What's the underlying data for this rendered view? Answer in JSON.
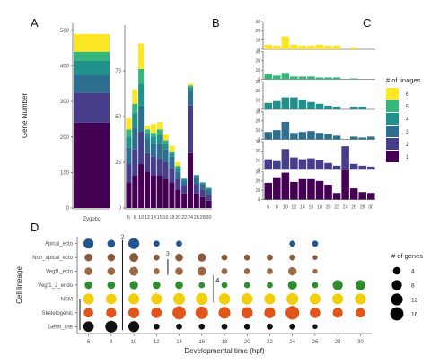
{
  "panels": {
    "a": "A",
    "b": "B",
    "c": "C",
    "d": "D"
  },
  "colors": {
    "lineage": {
      "1": "#440154",
      "2": "#463e8a",
      "3": "#2e6e8e",
      "4": "#21918c",
      "5": "#35b779",
      "6": "#fde725"
    },
    "d_rows": {
      "Apical_ecto": "#22558f",
      "Non_apical_ecto": "#8a5a3c",
      "Vegf1_ecto": "#9b6a45",
      "Vegf1_2_endo": "#2e8b2e",
      "NSM": "#f2cf0c",
      "Skeletogenic": "#e0551a",
      "Germ_line": "#111111"
    }
  },
  "chart_data": [
    {
      "type": "bar",
      "panel": "A",
      "stacked": true,
      "categories": [
        "Zygotic"
      ],
      "ylabel": "Gene Number",
      "ylim": [
        0,
        520
      ],
      "yticks": [
        0,
        100,
        200,
        300,
        400,
        500
      ],
      "series": [
        {
          "name": "1",
          "values": [
            240
          ]
        },
        {
          "name": "2",
          "values": [
            85
          ]
        },
        {
          "name": "3",
          "values": [
            50
          ]
        },
        {
          "name": "4",
          "values": [
            40
          ]
        },
        {
          "name": "5",
          "values": [
            25
          ]
        },
        {
          "name": "6",
          "values": [
            50
          ]
        }
      ]
    },
    {
      "type": "bar",
      "panel": "B",
      "stacked": true,
      "categories": [
        "6",
        "8",
        "10",
        "12",
        "14",
        "15",
        "16",
        "18",
        "20",
        "22",
        "24",
        "26",
        "28",
        "30"
      ],
      "ylim": [
        0,
        100
      ],
      "yticks": [
        0,
        25,
        50,
        75
      ],
      "series": [
        {
          "name": "1",
          "values": [
            14,
            18,
            24,
            20,
            18,
            18,
            16,
            14,
            10,
            8,
            30,
            8,
            6,
            4
          ]
        },
        {
          "name": "2",
          "values": [
            10,
            14,
            18,
            10,
            10,
            9,
            9,
            8,
            6,
            4,
            26,
            5,
            4,
            3
          ]
        },
        {
          "name": "3",
          "values": [
            9,
            12,
            14,
            8,
            7,
            8,
            7,
            6,
            4,
            3,
            8,
            4,
            3,
            3
          ]
        },
        {
          "name": "4",
          "values": [
            6,
            8,
            12,
            3,
            4,
            5,
            3,
            2,
            2,
            1,
            2,
            1,
            1,
            1
          ]
        },
        {
          "name": "5",
          "values": [
            4,
            5,
            8,
            2,
            2,
            3,
            2,
            1,
            1,
            0,
            1,
            0,
            0,
            0
          ]
        },
        {
          "name": "6",
          "values": [
            6,
            8,
            14,
            2,
            5,
            4,
            3,
            3,
            2,
            0,
            1,
            0,
            0,
            0
          ]
        }
      ]
    },
    {
      "type": "bar",
      "panel": "C",
      "faceted": true,
      "categories": [
        "6",
        "8",
        "10",
        "12",
        "14",
        "16",
        "18",
        "20",
        "22",
        "24",
        "26",
        "28",
        "30"
      ],
      "ylim": [
        0,
        30
      ],
      "yticks": [
        0,
        10,
        20,
        30
      ],
      "facets": [
        {
          "name": "6",
          "values": [
            5,
            4,
            14,
            5,
            4,
            4,
            5,
            4,
            4,
            0,
            2,
            0,
            0
          ]
        },
        {
          "name": "5",
          "values": [
            6,
            4,
            7,
            3,
            3,
            3,
            2,
            2,
            2,
            0,
            1,
            0,
            0
          ]
        },
        {
          "name": "4",
          "values": [
            7,
            9,
            13,
            13,
            10,
            8,
            6,
            4,
            3,
            0,
            3,
            3,
            0
          ]
        },
        {
          "name": "3",
          "values": [
            8,
            10,
            19,
            7,
            8,
            9,
            7,
            6,
            4,
            0,
            3,
            2,
            3
          ]
        },
        {
          "name": "2",
          "values": [
            11,
            9,
            22,
            13,
            11,
            12,
            10,
            7,
            4,
            25,
            6,
            4,
            3
          ]
        },
        {
          "name": "1",
          "values": [
            18,
            24,
            29,
            19,
            22,
            22,
            20,
            16,
            7,
            32,
            12,
            8,
            7
          ]
        }
      ]
    },
    {
      "type": "scatter",
      "panel": "D",
      "xlabel": "Developmental time (hpf)",
      "ylabel": "Cell lineage",
      "x_ticks": [
        6,
        8,
        10,
        12,
        14,
        16,
        18,
        20,
        22,
        24,
        26,
        28,
        30
      ],
      "rows": [
        "Apical_ecto",
        "Non_apical_ecto",
        "Vegf1_ecto",
        "Vegf1_2_endo",
        "NSM",
        "Skeletogenic",
        "Germ_line"
      ],
      "size_legend_title": "# of genes",
      "size_legend_values": [
        4,
        8,
        12,
        16
      ],
      "row_points": [
        {
          "row": "Apical_ecto",
          "x": [
            6,
            8,
            10,
            12,
            14,
            24,
            26
          ],
          "sizes": [
            8,
            4,
            10,
            2,
            2,
            2,
            2
          ]
        },
        {
          "row": "Non_apical_ecto",
          "x": [
            6,
            8,
            10,
            12,
            14,
            16,
            18,
            20,
            22,
            24,
            26
          ],
          "sizes": [
            4,
            4,
            6,
            2,
            4,
            5,
            2,
            2,
            2,
            2,
            1
          ]
        },
        {
          "row": "Vegf1_ecto",
          "x": [
            6,
            8,
            10,
            12,
            14,
            16,
            18,
            20,
            22,
            24,
            26
          ],
          "sizes": [
            4,
            4,
            6,
            2,
            4,
            6,
            2,
            2,
            2,
            5,
            1
          ]
        },
        {
          "row": "Vegf1_2_endo",
          "x": [
            6,
            8,
            10,
            12,
            14,
            16,
            18,
            20,
            22,
            24,
            26,
            28,
            30
          ],
          "sizes": [
            4,
            4,
            5,
            4,
            4,
            2,
            2,
            2,
            2,
            6,
            2,
            8,
            8
          ]
        },
        {
          "row": "NSM",
          "x": [
            6,
            8,
            10,
            12,
            14,
            16,
            18,
            20,
            22,
            24,
            26,
            28,
            30
          ],
          "sizes": [
            10,
            9,
            10,
            10,
            12,
            12,
            11,
            11,
            10,
            12,
            10,
            10,
            10
          ]
        },
        {
          "row": "Skeletogenic",
          "x": [
            6,
            8,
            10,
            12,
            14,
            16,
            18,
            20,
            22,
            24,
            26,
            28,
            30
          ],
          "sizes": [
            7,
            8,
            10,
            9,
            16,
            14,
            12,
            11,
            10,
            17,
            9,
            8,
            7
          ]
        },
        {
          "row": "Germ_line",
          "x": [
            6,
            8,
            10,
            12,
            14,
            16,
            18,
            20,
            22,
            24,
            26
          ],
          "sizes": [
            9,
            12,
            10,
            2,
            2,
            2,
            2,
            2,
            2,
            2,
            1
          ]
        }
      ],
      "annotations": [
        {
          "label": "2",
          "x_after": 8
        },
        {
          "label": "3",
          "x_after": 12
        },
        {
          "label": "4",
          "x_after": 16
        }
      ]
    }
  ],
  "legend": {
    "title": "# of linages",
    "items": [
      "6",
      "5",
      "4",
      "3",
      "2",
      "1"
    ]
  },
  "x_label_zygotic": "Zygotic"
}
